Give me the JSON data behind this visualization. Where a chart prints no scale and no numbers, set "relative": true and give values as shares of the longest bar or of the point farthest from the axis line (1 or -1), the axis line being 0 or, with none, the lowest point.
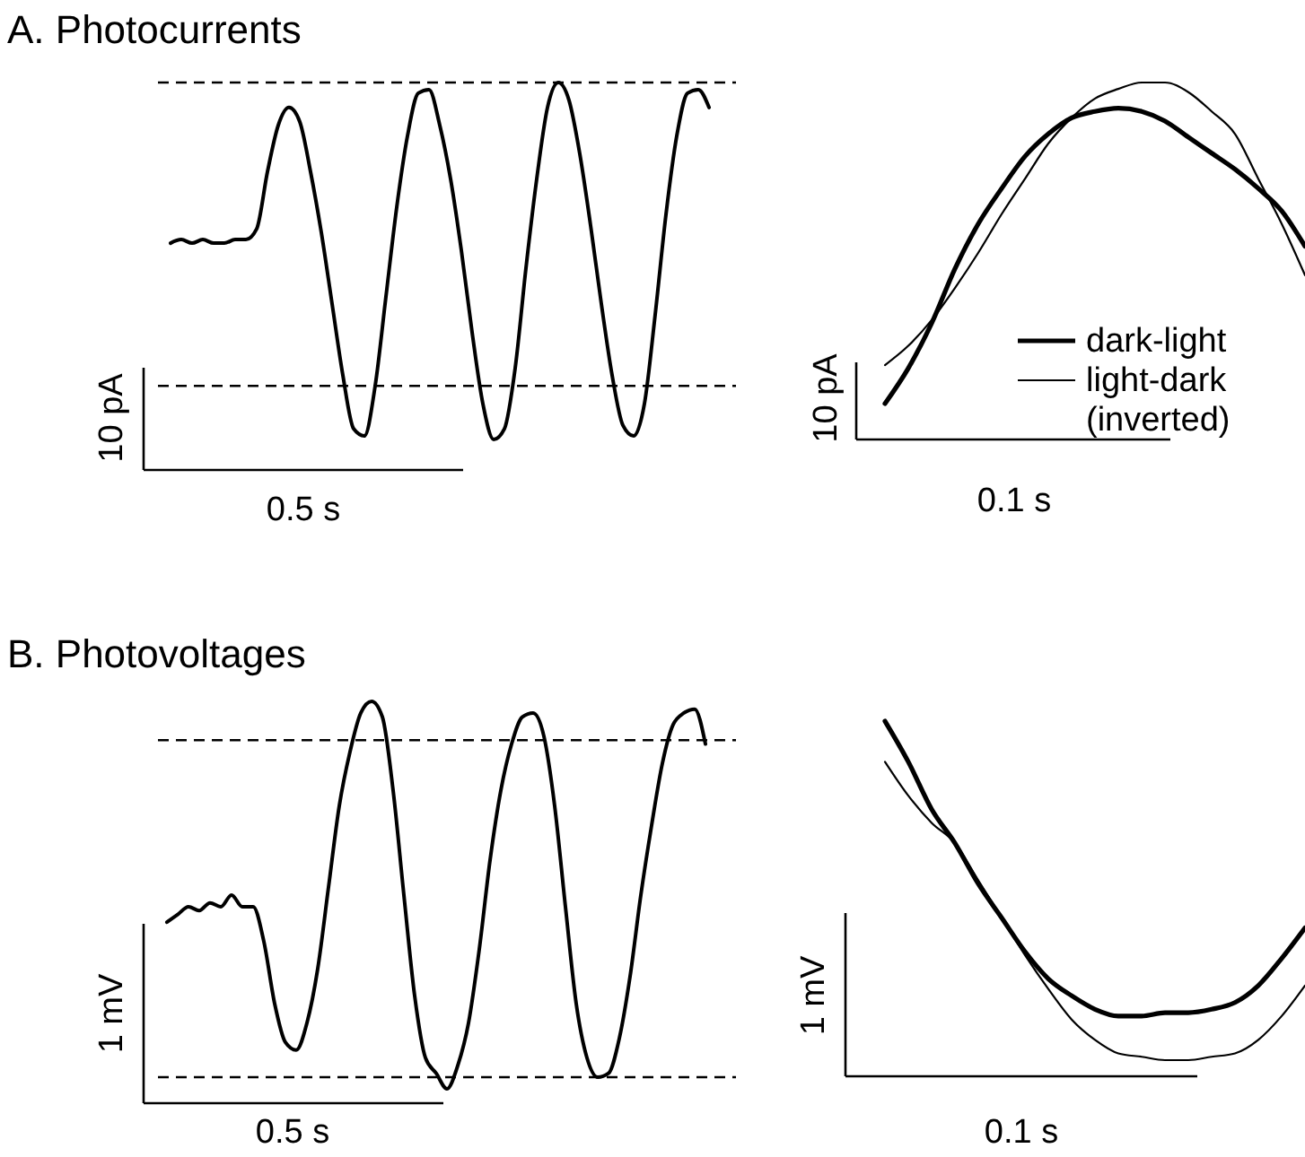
{
  "chart_data": [
    {
      "type": "line",
      "title": "A. Photocurrents",
      "relative": true,
      "xlabel": "0.5 s",
      "ylabel": "10 pA",
      "categories": [
        null,
        null,
        null,
        null,
        null,
        null,
        null,
        null,
        null,
        null,
        null,
        null,
        null,
        null,
        null,
        null,
        null,
        null,
        null,
        null,
        null,
        null,
        null,
        null,
        null,
        null,
        null,
        null,
        null,
        null,
        null,
        null,
        null,
        null,
        null,
        null,
        null,
        null,
        null,
        null,
        null,
        null,
        null,
        null,
        null,
        null,
        null,
        null,
        null,
        null,
        null
      ],
      "series": [
        {
          "color": "#000000",
          "values": [
            0.55,
            0.56,
            0.55,
            0.56,
            0.55,
            0.55,
            0.56,
            0.56,
            0.59,
            0.75,
            0.88,
            0.93,
            0.89,
            0.75,
            0.58,
            0.38,
            0.18,
            0.03,
            0.01,
            0.15,
            0.4,
            0.65,
            0.85,
            0.97,
            0.98,
            0.88,
            0.73,
            0.53,
            0.3,
            0.1,
            0,
            0.03,
            0.2,
            0.48,
            0.73,
            0.93,
            1,
            0.95,
            0.8,
            0.6,
            0.38,
            0.18,
            0.04,
            0.01,
            0.1,
            0.35,
            0.63,
            0.85,
            0.97,
            0.98,
            0.93
          ]
        }
      ],
      "ref_lines": [
        {
          "axis": "y",
          "value": 1,
          "line_style": "dashed"
        },
        {
          "axis": "y",
          "value": 0.15,
          "line_style": "dashed"
        }
      ]
    },
    {
      "type": "line",
      "relative": true,
      "xlabel": "0.1 s",
      "ylabel": "10 pA",
      "legend": "bottom right",
      "categories": [
        null,
        null,
        null,
        null,
        null,
        null,
        null,
        null,
        null,
        null,
        null,
        null,
        null,
        null,
        null,
        null,
        null,
        null,
        null
      ],
      "series": [
        {
          "name": "dark-light",
          "color": "#000000",
          "values": [
            0,
            0.11,
            0.25,
            0.42,
            0.56,
            0.67,
            0.77,
            0.84,
            0.89,
            0.91,
            0.92,
            0.91,
            0.88,
            0.83,
            0.78,
            0.73,
            0.67,
            0.6,
            0.49
          ]
        },
        {
          "name": "light-dark (inverted)",
          "color": "#000000",
          "values": [
            0.12,
            0.18,
            0.26,
            0.36,
            0.47,
            0.59,
            0.7,
            0.81,
            0.89,
            0.95,
            0.98,
            1,
            1,
            0.97,
            0.91,
            0.84,
            0.7,
            0.56,
            0.4
          ]
        }
      ]
    },
    {
      "type": "line",
      "title": "B. Photovoltages",
      "relative": true,
      "xlabel": "0.5 s",
      "ylabel": "1 mV",
      "categories": [
        null,
        null,
        null,
        null,
        null,
        null,
        null,
        null,
        null,
        null,
        null,
        null,
        null,
        null,
        null,
        null,
        null,
        null,
        null,
        null,
        null,
        null,
        null,
        null,
        null,
        null,
        null,
        null,
        null,
        null,
        null,
        null,
        null,
        null,
        null,
        null,
        null,
        null,
        null,
        null,
        null,
        null,
        null,
        null,
        null,
        null,
        null,
        null,
        null,
        null,
        null
      ],
      "series": [
        {
          "color": "#000000",
          "values": [
            0.43,
            0.45,
            0.47,
            0.46,
            0.48,
            0.47,
            0.5,
            0.47,
            0.47,
            0.38,
            0.22,
            0.12,
            0.1,
            0.17,
            0.31,
            0.52,
            0.73,
            0.87,
            0.97,
            1,
            0.96,
            0.77,
            0.5,
            0.24,
            0.08,
            0.04,
            0,
            0.06,
            0.17,
            0.36,
            0.59,
            0.77,
            0.89,
            0.96,
            0.97,
            0.91,
            0.73,
            0.47,
            0.22,
            0.08,
            0.03,
            0.04,
            0.13,
            0.29,
            0.5,
            0.68,
            0.84,
            0.94,
            0.97,
            0.98,
            0.89
          ]
        }
      ],
      "ref_lines": [
        {
          "axis": "y",
          "value": 0.9,
          "line_style": "dashed"
        },
        {
          "axis": "y",
          "value": 0.03,
          "line_style": "dashed"
        }
      ]
    },
    {
      "type": "line",
      "relative": true,
      "xlabel": "0.1 s",
      "ylabel": "1 mV",
      "categories": [
        null,
        null,
        null,
        null,
        null,
        null,
        null,
        null,
        null,
        null,
        null,
        null,
        null,
        null,
        null,
        null,
        null,
        null,
        null
      ],
      "series": [
        {
          "color": "#000000",
          "values": [
            1,
            0.88,
            0.74,
            0.64,
            0.52,
            0.42,
            0.32,
            0.24,
            0.19,
            0.15,
            0.13,
            0.13,
            0.14,
            0.14,
            0.15,
            0.17,
            0.22,
            0.3,
            0.39
          ]
        },
        {
          "color": "#000000",
          "values": [
            0.88,
            0.78,
            0.7,
            0.64,
            0.53,
            0.42,
            0.31,
            0.21,
            0.12,
            0.06,
            0.02,
            0.01,
            0,
            0,
            0.01,
            0.02,
            0.06,
            0.13,
            0.22
          ]
        }
      ]
    }
  ]
}
